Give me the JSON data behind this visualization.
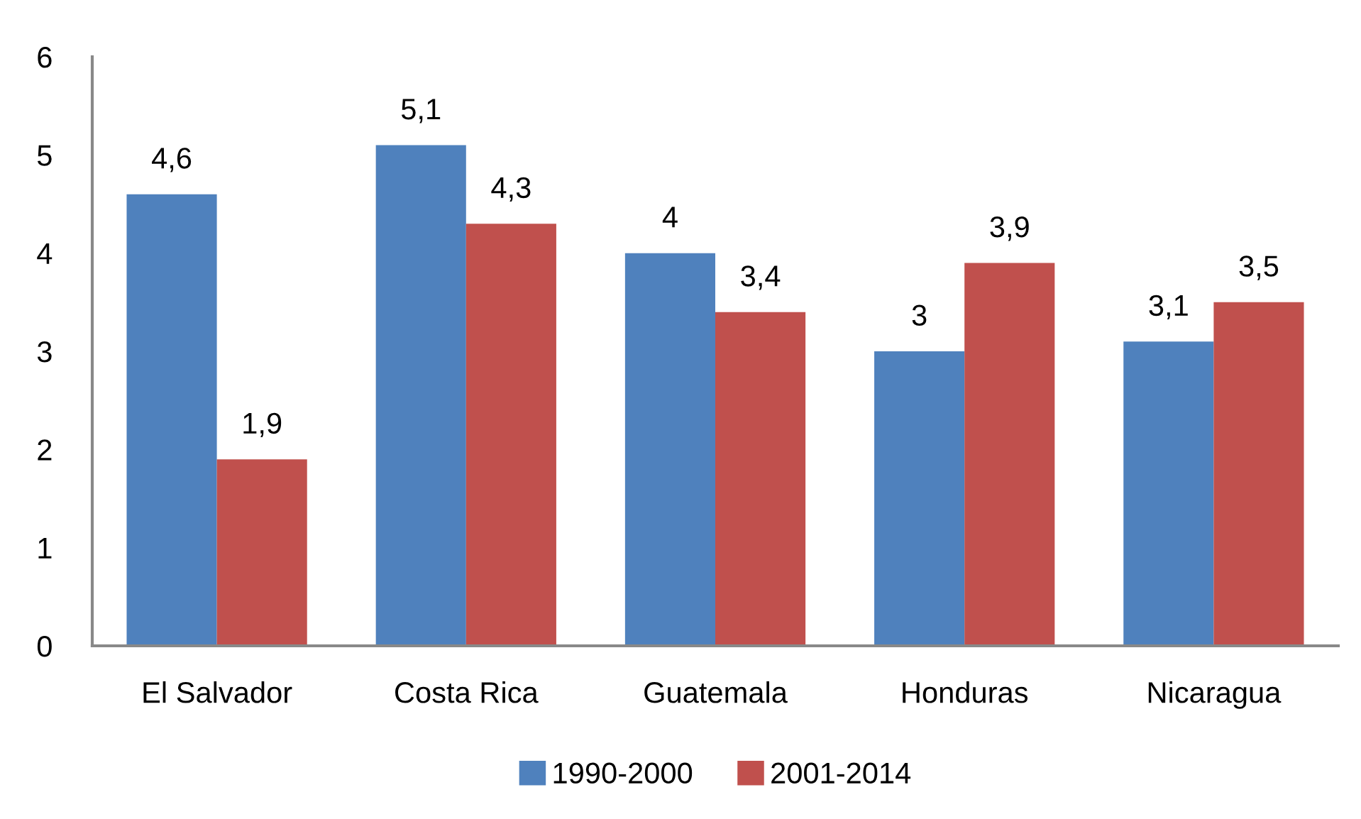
{
  "chart_data": {
    "type": "bar",
    "categories": [
      "El Salvador",
      "Costa Rica",
      "Guatemala",
      "Honduras",
      "Nicaragua"
    ],
    "series": [
      {
        "name": "1990-2000",
        "color": "#4f81bd",
        "values": [
          4.6,
          5.1,
          4,
          3,
          3.1
        ],
        "value_labels": [
          "4,6",
          "5,1",
          "4",
          "3",
          "3,1"
        ]
      },
      {
        "name": "2001-2014",
        "color": "#c0504d",
        "values": [
          1.9,
          4.3,
          3.4,
          3.9,
          3.5
        ],
        "value_labels": [
          "1,9",
          "4,3",
          "3,4",
          "3,9",
          "3,5"
        ]
      }
    ],
    "ylim": [
      0,
      6
    ],
    "yticks": [
      0,
      1,
      2,
      3,
      4,
      5,
      6
    ],
    "grid": false,
    "legend": "bottom"
  }
}
